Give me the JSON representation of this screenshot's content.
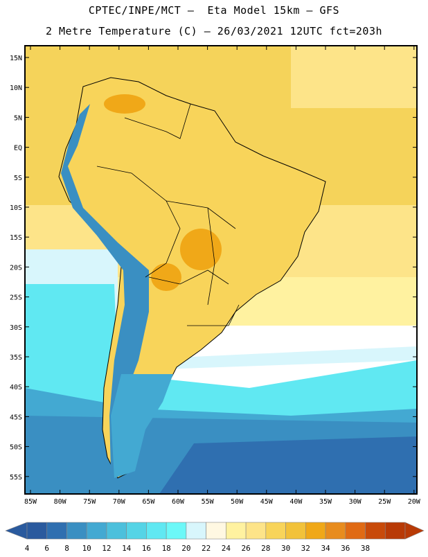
{
  "title_line1": "CPTEC/INPE/MCT –  Eta Model 15km – GFS",
  "title_line2": "2 Metre Temperature (C) – 26/03/2021 12UTC fct=203h",
  "lat_labels": [
    "15N",
    "10N",
    "5N",
    "EQ",
    "5S",
    "10S",
    "15S",
    "20S",
    "25S",
    "30S",
    "35S",
    "40S",
    "45S",
    "50S",
    "55S"
  ],
  "lon_labels": [
    "85W",
    "80W",
    "75W",
    "70W",
    "65W",
    "60W",
    "55W",
    "50W",
    "45W",
    "40W",
    "35W",
    "30W",
    "25W",
    "20W"
  ],
  "colorbar": {
    "labels": [
      "4",
      "6",
      "8",
      "10",
      "12",
      "14",
      "16",
      "18",
      "20",
      "22",
      "24",
      "26",
      "28",
      "30",
      "32",
      "34",
      "36",
      "38"
    ],
    "colors": [
      "#2a5a9e",
      "#2f6fb0",
      "#3a8fc2",
      "#43a9d2",
      "#4cc0dc",
      "#55d4e6",
      "#60e8f2",
      "#6cf8f8",
      "#d8f6fc",
      "#fff8e2",
      "#fff2a0",
      "#fde489",
      "#f8d45a",
      "#f2c23a",
      "#f0a818",
      "#e88c1e",
      "#e06a14",
      "#c84a0a",
      "#b83a06"
    ],
    "left_arrow_color": "#2a5a9e",
    "right_arrow_color": "#b83a06"
  },
  "map_colors": {
    "ocean_north": "#f5d35a",
    "ocean_mid": "#fde489",
    "ocean_pale": "#fff2a0",
    "cool_band": "#d8f6fc",
    "cyan_band": "#60e8f2",
    "cyan_deep": "#43a9d2",
    "blue_south": "#3a8fc2",
    "blue_deep": "#2f6fb0",
    "land_warm": "#f8d45a",
    "land_hot": "#f0a818",
    "andes": "#3a8fc2",
    "coast_line": "#000000"
  }
}
